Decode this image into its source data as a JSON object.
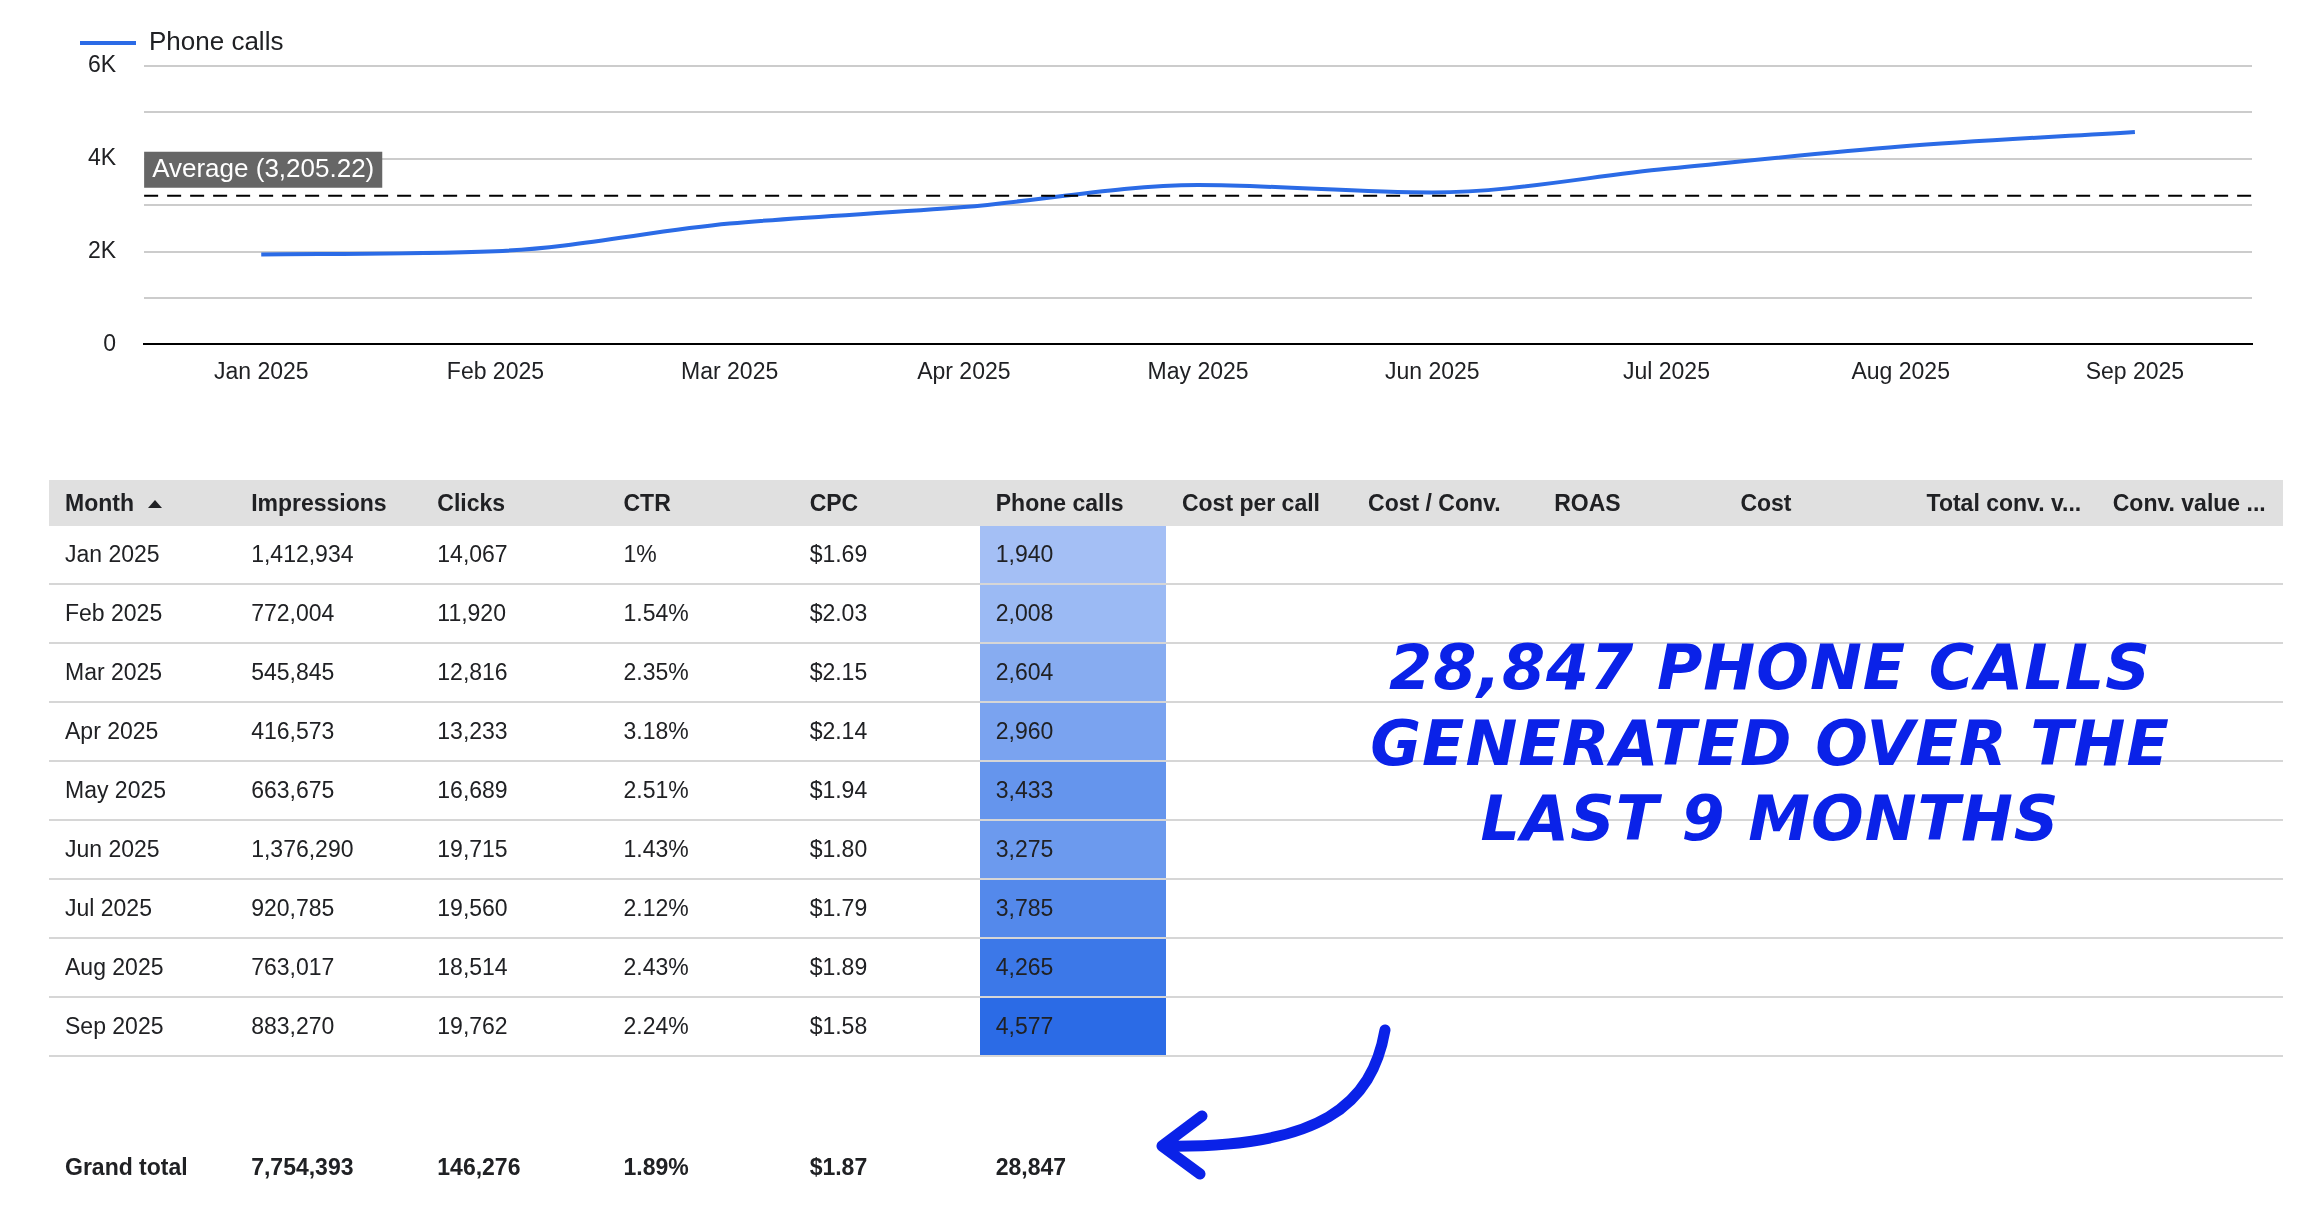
{
  "chart_data": [
    {
      "type": "line",
      "categories": [
        "Jan 2025",
        "Feb 2025",
        "Mar 2025",
        "Apr 2025",
        "May 2025",
        "Jun 2025",
        "Jul 2025",
        "Aug 2025",
        "Sep 2025"
      ],
      "series": [
        {
          "name": "Phone calls",
          "color": "#2b6be6",
          "values": [
            1940,
            2008,
            2604,
            2960,
            3433,
            3275,
            3785,
            4265,
            4577
          ]
        }
      ],
      "ylim": [
        0,
        6000
      ],
      "yticks": [
        0,
        {
          "value": 1000,
          "label": null
        },
        {
          "value": 2000,
          "label": "2K"
        },
        {
          "value": 3000,
          "label": null
        },
        {
          "value": 4000,
          "label": "4K"
        },
        {
          "value": 5000,
          "label": null
        },
        {
          "value": 6000,
          "label": "6K"
        }
      ],
      "ref_lines": [
        {
          "axis": "y",
          "value": 3205.22,
          "label": "Average (3,205.22)",
          "line_style": "dashed",
          "color": "#000000"
        }
      ],
      "grid": "y",
      "legend": "top left",
      "marker": "none"
    },
    {
      "type": "other",
      "xlabel": "Month",
      "categories": [
        "Jan 2025",
        "Feb 2025",
        "Mar 2025",
        "Apr 2025",
        "May 2025",
        "Jun 2025",
        "Jul 2025",
        "Aug 2025",
        "Sep 2025",
        "Grand total"
      ],
      "series": [
        {
          "name": "Impressions",
          "values": [
            1412934,
            772004,
            545845,
            416573,
            663675,
            1376290,
            920785,
            763017,
            883270,
            7754393
          ],
          "value_labels": [
            "1,412,934",
            "772,004",
            "545,845",
            "416,573",
            "663,675",
            "1,376,290",
            "920,785",
            "763,017",
            "883,270",
            "7,754,393"
          ]
        },
        {
          "name": "Clicks",
          "values": [
            14067,
            11920,
            12816,
            13233,
            16689,
            19715,
            19560,
            18514,
            19762,
            146276
          ],
          "value_labels": [
            "14,067",
            "11,920",
            "12,816",
            "13,233",
            "16,689",
            "19,715",
            "19,560",
            "18,514",
            "19,762",
            "146,276"
          ]
        },
        {
          "name": "CTR",
          "values": [
            1,
            1.54,
            2.35,
            3.18,
            2.51,
            1.43,
            2.12,
            2.43,
            2.24,
            1.89
          ],
          "value_labels": [
            "1%",
            "1.54%",
            "2.35%",
            "3.18%",
            "2.51%",
            "1.43%",
            "2.12%",
            "2.43%",
            "2.24%",
            "1.89%"
          ]
        },
        {
          "name": "CPC",
          "values": [
            1.69,
            2.03,
            2.15,
            2.14,
            1.94,
            1.8,
            1.79,
            1.89,
            1.58,
            1.87
          ],
          "value_labels": [
            "$1.69",
            "$2.03",
            "$2.15",
            "$2.14",
            "$1.94",
            "$1.80",
            "$1.79",
            "$1.89",
            "$1.58",
            "$1.87"
          ]
        },
        {
          "name": "Phone calls",
          "values": [
            1940,
            2008,
            2604,
            2960,
            3433,
            3275,
            3785,
            4265,
            4577,
            28847
          ],
          "value_labels": [
            "1,940",
            "2,008",
            "2,604",
            "2,960",
            "3,433",
            "3,275",
            "3,785",
            "4,265",
            "4,577",
            "28,847"
          ],
          "colors": [
            "#a4bff5",
            "#9bbaf4",
            "#87acf1",
            "#7aa3f0",
            "#6595ed",
            "#6c9aee",
            "#5489eb",
            "#3c78e8",
            "#2b6be6",
            null
          ]
        },
        {
          "name": "Cost per call",
          "values": [
            null,
            null,
            null,
            null,
            null,
            null,
            null,
            null,
            null,
            null
          ]
        },
        {
          "name": "Cost / Conv.",
          "values": [
            null,
            null,
            null,
            null,
            null,
            null,
            null,
            null,
            null,
            null
          ]
        },
        {
          "name": "ROAS",
          "values": [
            null,
            null,
            null,
            null,
            null,
            null,
            null,
            null,
            null,
            null
          ]
        },
        {
          "name": "Cost",
          "values": [
            null,
            null,
            null,
            null,
            null,
            null,
            null,
            null,
            null,
            null
          ]
        },
        {
          "name": "Total conv. v...",
          "values": [
            null,
            null,
            null,
            null,
            null,
            null,
            null,
            null,
            null,
            null
          ]
        },
        {
          "name": "Conv. value ...",
          "values": [
            null,
            null,
            null,
            null,
            null,
            null,
            null,
            null,
            null,
            null
          ]
        }
      ],
      "annotations": [
        "28,847 PHONE CALLS GENERATED OVER THE LAST 9 MONTHS"
      ]
    }
  ]
}
